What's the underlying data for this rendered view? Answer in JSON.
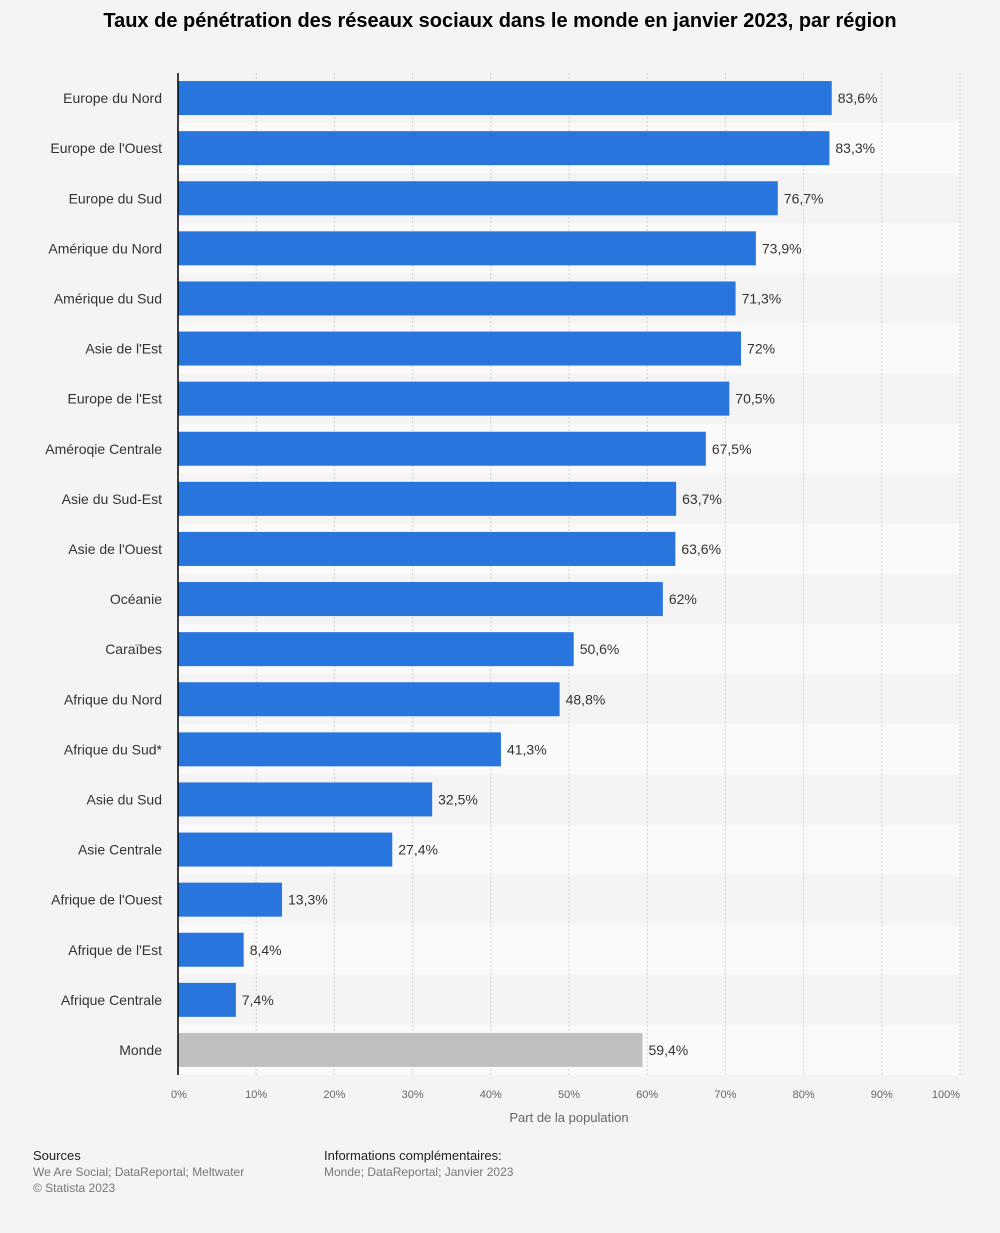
{
  "chart_data": {
    "type": "bar",
    "orientation": "horizontal",
    "title": "Taux de pénétration des réseaux sociaux dans le monde en janvier 2023, par région",
    "xlabel": "Part de la population",
    "ylabel": "",
    "xlim": [
      0,
      100
    ],
    "x_ticks": [
      "0%",
      "10%",
      "20%",
      "30%",
      "40%",
      "50%",
      "60%",
      "70%",
      "80%",
      "90%",
      "100%"
    ],
    "grid": true,
    "categories": [
      "Europe du Nord",
      "Europe de l'Ouest",
      "Europe du Sud",
      "Amérique du Nord",
      "Amérique du Sud",
      "Asie de l'Est",
      "Europe de l'Est",
      "Améroqie Centrale",
      "Asie du Sud-Est",
      "Asie de l'Ouest",
      "Océanie",
      "Caraïbes",
      "Afrique du Nord",
      "Afrique du Sud*",
      "Asie du Sud",
      "Asie Centrale",
      "Afrique de l'Ouest",
      "Afrique de l'Est",
      "Afrique Centrale",
      "Monde"
    ],
    "values": [
      83.6,
      83.3,
      76.7,
      73.9,
      71.3,
      72,
      70.5,
      67.5,
      63.7,
      63.6,
      62,
      50.6,
      48.8,
      41.3,
      32.5,
      27.4,
      13.3,
      8.4,
      7.4,
      59.4
    ],
    "value_labels": [
      "83,6%",
      "83,3%",
      "76,7%",
      "73,9%",
      "71,3%",
      "72%",
      "70,5%",
      "67,5%",
      "63,7%",
      "63,6%",
      "62%",
      "50,6%",
      "48,8%",
      "41,3%",
      "32,5%",
      "27,4%",
      "13,3%",
      "8,4%",
      "7,4%",
      "59,4%"
    ],
    "colors": {
      "bar": "#2876dd",
      "highlight_bar": "#c0c0c0",
      "row_even": "#f4f4f4",
      "row_odd": "#fafafa"
    }
  },
  "footer": {
    "sources_heading": "Sources",
    "sources": "We Are Social; DataReportal; Meltwater",
    "copyright": "© Statista 2023",
    "info_heading": "Informations complémentaires:",
    "info": "Monde; DataReportal; Janvier 2023"
  }
}
